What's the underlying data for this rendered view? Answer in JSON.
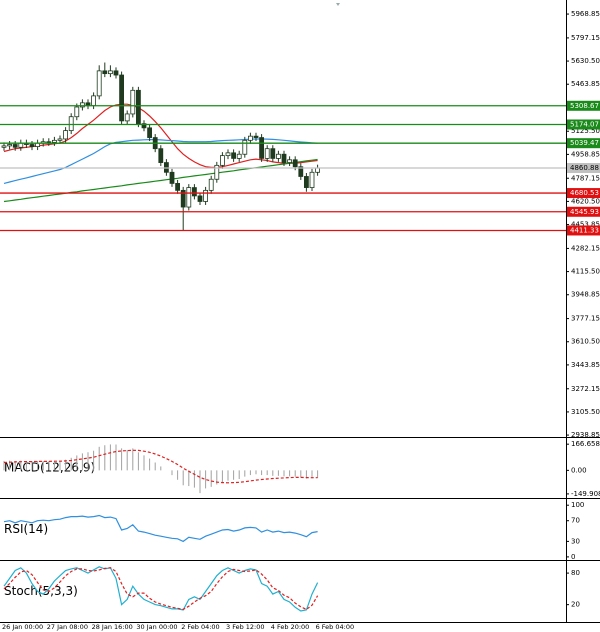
{
  "chart_data": [
    {
      "type": "candlestick",
      "categories": [
        "26 Jan 00:00",
        null,
        null,
        null,
        null,
        null,
        null,
        null,
        "27 Jan 08:00",
        null,
        null,
        null,
        null,
        null,
        null,
        null,
        "28 Jan 16:00",
        null,
        null,
        null,
        null,
        null,
        null,
        null,
        "30 Jan 00:00",
        null,
        null,
        null,
        null,
        null,
        null,
        null,
        "2 Feb 04:00",
        null,
        null,
        null,
        null,
        null,
        null,
        null,
        "3 Feb 12:00",
        null,
        null,
        null,
        null,
        null,
        null,
        null,
        "4 Feb 20:00",
        null,
        null,
        null,
        null,
        null,
        null,
        null,
        "6 Feb 04:00"
      ],
      "open": [
        5010,
        5020,
        5030,
        5010,
        5040,
        5030,
        5015,
        5040,
        5050,
        5045,
        5060,
        5070,
        5130,
        5230,
        5300,
        5330,
        5310,
        5380,
        5560,
        5540,
        5560,
        5530,
        5200,
        5250,
        5420,
        5180,
        5150,
        5080,
        5000,
        4900,
        4830,
        4750,
        4700,
        4580,
        4720,
        4660,
        4620,
        4700,
        4780,
        4880,
        4950,
        4970,
        4930,
        4960,
        5060,
        5090,
        5080,
        4930,
        5000,
        4930,
        4960,
        4900,
        4920,
        4870,
        4800,
        4720,
        4830
      ],
      "high": [
        5045,
        5055,
        5055,
        5065,
        5065,
        5055,
        5065,
        5075,
        5075,
        5085,
        5095,
        5155,
        5255,
        5325,
        5355,
        5355,
        5405,
        5600,
        5620,
        5600,
        5585,
        5555,
        5275,
        5445,
        5445,
        5205,
        5175,
        5105,
        5025,
        4925,
        4855,
        4775,
        4725,
        4745,
        4745,
        4685,
        4725,
        4805,
        4905,
        4975,
        4995,
        4995,
        4985,
        5085,
        5115,
        5115,
        5105,
        5025,
        5025,
        4985,
        4985,
        4945,
        4945,
        4895,
        4825,
        4855,
        4885
      ],
      "low": [
        4985,
        4995,
        4985,
        4985,
        5005,
        4990,
        4990,
        5015,
        5020,
        5020,
        5035,
        5045,
        5105,
        5205,
        5275,
        5285,
        5285,
        5355,
        5515,
        5515,
        5505,
        5175,
        5175,
        5225,
        5155,
        5125,
        5055,
        4975,
        4875,
        4805,
        4725,
        4675,
        4410,
        4555,
        4635,
        4595,
        4595,
        4675,
        4755,
        4855,
        4925,
        4905,
        4905,
        4935,
        5035,
        5055,
        4905,
        4905,
        4905,
        4905,
        4875,
        4875,
        4845,
        4775,
        4690,
        4695,
        4805
      ],
      "close": [
        5020,
        5030,
        5010,
        5040,
        5030,
        5015,
        5040,
        5050,
        5045,
        5060,
        5070,
        5130,
        5230,
        5300,
        5330,
        5310,
        5380,
        5560,
        5540,
        5560,
        5530,
        5200,
        5250,
        5420,
        5180,
        5150,
        5080,
        5000,
        4900,
        4830,
        4750,
        4700,
        4580,
        4720,
        4660,
        4620,
        4700,
        4780,
        4880,
        4950,
        4970,
        4930,
        4960,
        5060,
        5090,
        5080,
        4930,
        5000,
        4930,
        4960,
        4900,
        4920,
        4870,
        4800,
        4720,
        4830,
        4860
      ],
      "up_color": "#ffffff",
      "down_color": "#1f3a1f",
      "series": [
        {
          "color": "#e02020",
          "values": [
            4980,
            4990,
            5000,
            5005,
            5010,
            5015,
            5020,
            5025,
            5030,
            5035,
            5040,
            5055,
            5080,
            5110,
            5145,
            5175,
            5205,
            5240,
            5275,
            5300,
            5315,
            5320,
            5320,
            5310,
            5295,
            5270,
            5235,
            5195,
            5150,
            5100,
            5050,
            5000,
            4960,
            4930,
            4905,
            4885,
            4870,
            4865,
            4865,
            4870,
            4880,
            4890,
            4900,
            4910,
            4920,
            4925,
            4920,
            4915,
            4905,
            4900,
            4895,
            4895,
            4895,
            4900,
            4905,
            4910,
            4915
          ]
        },
        {
          "color": "#2f8fe0",
          "values": [
            4750,
            4760,
            4770,
            4780,
            4790,
            4800,
            4810,
            4820,
            4830,
            4840,
            4850,
            4865,
            4885,
            4905,
            4925,
            4945,
            4965,
            4990,
            5015,
            5035,
            5045,
            5050,
            5055,
            5060,
            5062,
            5064,
            5065,
            5065,
            5063,
            5060,
            5058,
            5055,
            5052,
            5050,
            5050,
            5050,
            5050,
            5052,
            5055,
            5058,
            5060,
            5062,
            5064,
            5066,
            5068,
            5070,
            5070,
            5069,
            5067,
            5064,
            5060,
            5056,
            5052,
            5048,
            5045,
            5042,
            5040
          ]
        },
        {
          "color": "#1a8a1a",
          "values": [
            4620,
            4625,
            4631,
            4636,
            4642,
            4647,
            4652,
            4658,
            4663,
            4669,
            4674,
            4679,
            4685,
            4690,
            4696,
            4701,
            4706,
            4712,
            4717,
            4723,
            4728,
            4733,
            4739,
            4744,
            4750,
            4755,
            4760,
            4766,
            4771,
            4777,
            4782,
            4787,
            4793,
            4798,
            4804,
            4809,
            4814,
            4820,
            4825,
            4831,
            4836,
            4841,
            4847,
            4852,
            4858,
            4863,
            4868,
            4874,
            4879,
            4885,
            4890,
            4895,
            4901,
            4906,
            4912,
            4917,
            4922
          ]
        }
      ],
      "levels": [
        {
          "value": 5308.67,
          "color": "#1a8a1a"
        },
        {
          "value": 5174.07,
          "color": "#1a8a1a"
        },
        {
          "value": 5039.47,
          "color": "#1a8a1a"
        },
        {
          "value": 4860.88,
          "color": "#c0c0c0"
        },
        {
          "value": 4680.53,
          "color": "#e01010"
        },
        {
          "value": 4545.93,
          "color": "#e01010"
        },
        {
          "value": 4411.33,
          "color": "#e01010"
        }
      ],
      "ylim": [
        2925,
        6070
      ],
      "yticks": [
        5968.85,
        5797.15,
        {
          "value": 5630.5,
          "label": "5630.50"
        },
        5463.85,
        {
          "value": 5125.5,
          "label": "5125.50"
        },
        4958.85,
        4787.15,
        {
          "value": 4620.5,
          "label": "4620.50"
        },
        4453.85,
        4282.15,
        {
          "value": 4115.5,
          "label": "4115.50"
        },
        3948.85,
        3777.15,
        {
          "value": 3610.5,
          "label": "3610.50"
        },
        3443.85,
        3272.15,
        {
          "value": 3105.5,
          "label": "3105.50"
        },
        2938.85
      ]
    },
    {
      "type": "macd",
      "title": "MACD(12,26,9)",
      "color": "#a0a0a0",
      "values": [
        60,
        62,
        60,
        62,
        60,
        58,
        60,
        60,
        58,
        60,
        62,
        68,
        80,
        95,
        108,
        115,
        125,
        150,
        160,
        165,
        165,
        140,
        130,
        140,
        115,
        95,
        75,
        50,
        25,
        0,
        -30,
        -60,
        -95,
        -100,
        -110,
        -145,
        -115,
        -105,
        -90,
        -75,
        -65,
        -60,
        -55,
        -40,
        -30,
        -25,
        -30,
        -30,
        -35,
        -35,
        -38,
        -38,
        -40,
        -45,
        -52,
        -50,
        -48
      ],
      "series": [
        {
          "color": "#e02020",
          "dash": true,
          "values": [
            50,
            52,
            54,
            55,
            56,
            56,
            57,
            57,
            57,
            58,
            58,
            60,
            63,
            68,
            73,
            78,
            84,
            93,
            103,
            112,
            120,
            124,
            126,
            128,
            127,
            122,
            115,
            104,
            91,
            75,
            57,
            37,
            14,
            -6,
            -25,
            -44,
            -58,
            -68,
            -75,
            -78,
            -79,
            -78,
            -76,
            -72,
            -67,
            -62,
            -58,
            -55,
            -52,
            -50,
            -48,
            -46,
            -45,
            -45,
            -46,
            -47,
            -47
          ]
        }
      ],
      "ylim": [
        -176,
        206
      ],
      "yticks": [
        166.658,
        {
          "value": 0,
          "label": "0.00"
        },
        -149.908
      ]
    },
    {
      "type": "line",
      "title": "RSI(14)",
      "series": [
        {
          "color": "#2f8fe0",
          "values": [
            68,
            70,
            66,
            70,
            68,
            66,
            70,
            71,
            70,
            72,
            73,
            76,
            78,
            78,
            79,
            77,
            78,
            80,
            76,
            77,
            74,
            52,
            55,
            62,
            50,
            48,
            45,
            42,
            40,
            38,
            36,
            35,
            30,
            38,
            36,
            34,
            40,
            44,
            48,
            52,
            53,
            50,
            52,
            56,
            57,
            56,
            48,
            52,
            48,
            50,
            47,
            48,
            46,
            43,
            39,
            47,
            49
          ]
        }
      ],
      "ylim": [
        -6,
        112
      ],
      "yticks": [
        100,
        70,
        30,
        0
      ]
    },
    {
      "type": "line",
      "title": "Stoch(5,3,3)",
      "series": [
        {
          "color": "#20b0d0",
          "values": [
            55,
            70,
            85,
            90,
            80,
            60,
            45,
            40,
            50,
            65,
            75,
            85,
            88,
            90,
            85,
            80,
            86,
            92,
            88,
            90,
            70,
            20,
            30,
            55,
            40,
            30,
            25,
            20,
            18,
            15,
            12,
            12,
            10,
            30,
            35,
            30,
            45,
            60,
            75,
            85,
            90,
            85,
            80,
            85,
            88,
            86,
            60,
            55,
            40,
            45,
            30,
            25,
            15,
            8,
            10,
            40,
            62
          ]
        },
        {
          "color": "#e02020",
          "dash": true,
          "values": [
            50,
            60,
            72,
            82,
            85,
            77,
            62,
            48,
            45,
            52,
            63,
            75,
            83,
            88,
            88,
            85,
            84,
            86,
            89,
            90,
            83,
            60,
            40,
            35,
            42,
            42,
            32,
            25,
            21,
            18,
            15,
            13,
            11,
            17,
            25,
            32,
            37,
            45,
            60,
            73,
            83,
            87,
            85,
            83,
            84,
            86,
            78,
            67,
            52,
            47,
            38,
            33,
            23,
            16,
            11,
            19,
            37
          ]
        }
      ],
      "ylim": [
        -13,
        103
      ],
      "yticks": [
        80,
        20
      ]
    }
  ]
}
